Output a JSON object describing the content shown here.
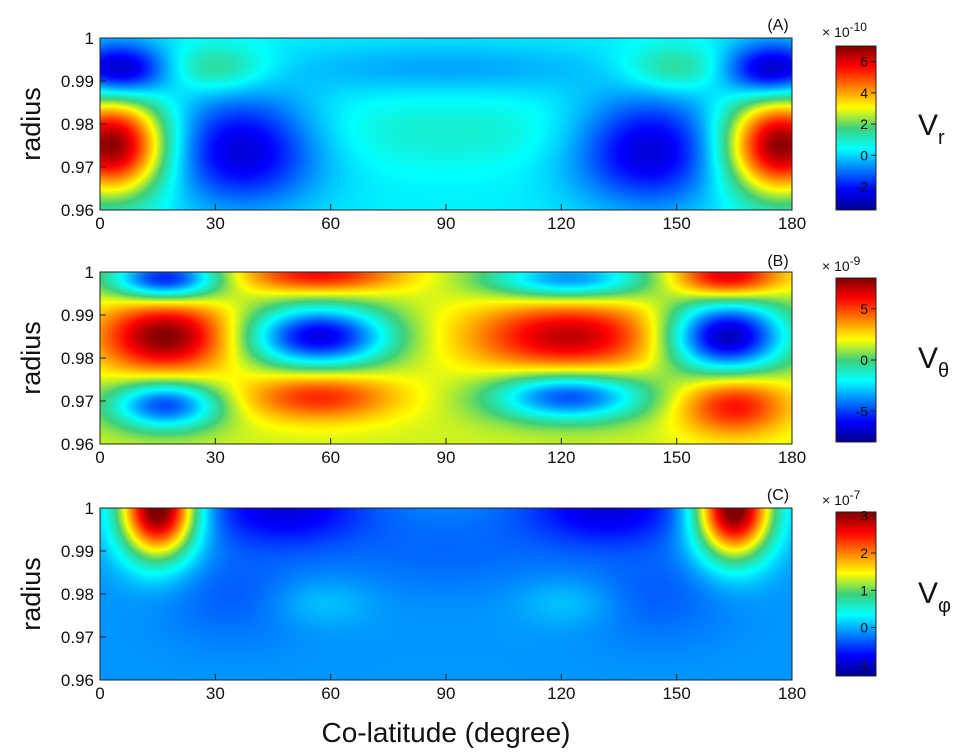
{
  "xlabel": "Co-latitude  (degree)",
  "x_ticks": [
    "0",
    "30",
    "60",
    "90",
    "120",
    "150",
    "180"
  ],
  "y_ticks": [
    "1",
    "0.99",
    "0.98",
    "0.97",
    "0.96"
  ],
  "chart_data": [
    {
      "type": "heatmap",
      "panel": "(A)",
      "ylabel": "radius",
      "xlim": [
        0,
        180
      ],
      "ylim": [
        0.96,
        1.0
      ],
      "colorbar": {
        "label": "V",
        "subscript": "r",
        "multiplier": "× 10",
        "exponent": "-10",
        "ticks": [
          "6",
          "4",
          "2",
          "0",
          "-2"
        ],
        "tick_values": [
          6,
          4,
          2,
          0,
          -2
        ],
        "range": [
          -3.5,
          7
        ]
      },
      "background_value": 0.3,
      "features": [
        {
          "x": 3,
          "y": 0.975,
          "value": 7.0,
          "sx": 10,
          "sy": 0.008
        },
        {
          "x": 177,
          "y": 0.975,
          "value": 7.0,
          "sx": 10,
          "sy": 0.008
        },
        {
          "x": 5,
          "y": 0.9925,
          "value": -3.3,
          "sx": 9,
          "sy": 0.0045
        },
        {
          "x": 175,
          "y": 0.9925,
          "value": -3.3,
          "sx": 9,
          "sy": 0.0045
        },
        {
          "x": 37,
          "y": 0.974,
          "value": -2.8,
          "sx": 14,
          "sy": 0.009
        },
        {
          "x": 143,
          "y": 0.974,
          "value": -2.8,
          "sx": 14,
          "sy": 0.009
        },
        {
          "x": 30,
          "y": 0.993,
          "value": 1.8,
          "sx": 10,
          "sy": 0.004
        },
        {
          "x": 150,
          "y": 0.993,
          "value": 1.8,
          "sx": 10,
          "sy": 0.004
        },
        {
          "x": 90,
          "y": 0.993,
          "value": -0.5,
          "sx": 30,
          "sy": 0.004
        },
        {
          "x": 90,
          "y": 0.978,
          "value": 0.9,
          "sx": 35,
          "sy": 0.006
        }
      ]
    },
    {
      "type": "heatmap",
      "panel": "(B)",
      "ylabel": "radius",
      "xlim": [
        0,
        180
      ],
      "ylim": [
        0.96,
        1.0
      ],
      "colorbar": {
        "label": "V",
        "subscript": "θ",
        "multiplier": "× 10",
        "exponent": "-9",
        "ticks": [
          "5",
          "0",
          "-5"
        ],
        "tick_values": [
          5,
          0,
          -5
        ],
        "range": [
          -8,
          8
        ]
      },
      "background_value": 1.5,
      "features": [
        {
          "x": 17,
          "y": 0.985,
          "value": 8.0,
          "sx": 12,
          "sy": 0.006
        },
        {
          "x": 122,
          "y": 0.985,
          "value": 7.0,
          "sx": 18,
          "sy": 0.006
        },
        {
          "x": 57,
          "y": 0.985,
          "value": -6.5,
          "sx": 13,
          "sy": 0.005
        },
        {
          "x": 163,
          "y": 0.985,
          "value": -7.5,
          "sx": 11,
          "sy": 0.006
        },
        {
          "x": 17,
          "y": 0.9985,
          "value": -6.0,
          "sx": 10,
          "sy": 0.0035
        },
        {
          "x": 122,
          "y": 0.9985,
          "value": -4.0,
          "sx": 15,
          "sy": 0.0035
        },
        {
          "x": 57,
          "y": 0.9995,
          "value": 6.0,
          "sx": 15,
          "sy": 0.003
        },
        {
          "x": 163,
          "y": 0.999,
          "value": 7.0,
          "sx": 10,
          "sy": 0.0035
        },
        {
          "x": 17,
          "y": 0.969,
          "value": -5.0,
          "sx": 10,
          "sy": 0.004
        },
        {
          "x": 122,
          "y": 0.971,
          "value": -5.0,
          "sx": 14,
          "sy": 0.004
        },
        {
          "x": 57,
          "y": 0.971,
          "value": 5.5,
          "sx": 14,
          "sy": 0.004
        },
        {
          "x": 165,
          "y": 0.969,
          "value": 6.0,
          "sx": 10,
          "sy": 0.005
        }
      ]
    },
    {
      "type": "heatmap",
      "panel": "(C)",
      "ylabel": "radius",
      "xlim": [
        0,
        180
      ],
      "ylim": [
        0.96,
        1.0
      ],
      "colorbar": {
        "label": "V",
        "subscript": "φ",
        "multiplier": "× 10",
        "exponent": "-7",
        "ticks": [
          "3",
          "2",
          "1",
          "0",
          "-1"
        ],
        "tick_values": [
          3,
          2,
          1,
          0,
          -1
        ],
        "range": [
          -1.3,
          3.1
        ]
      },
      "background_value": -0.1,
      "features": [
        {
          "x": 15,
          "y": 1.0,
          "value": 3.3,
          "sx": 7,
          "sy": 0.008
        },
        {
          "x": 165,
          "y": 1.0,
          "value": 3.3,
          "sx": 7,
          "sy": 0.008
        },
        {
          "x": 48,
          "y": 1.0,
          "value": -0.9,
          "sx": 15,
          "sy": 0.006
        },
        {
          "x": 132,
          "y": 1.0,
          "value": -0.9,
          "sx": 15,
          "sy": 0.006
        },
        {
          "x": 90,
          "y": 0.99,
          "value": -0.3,
          "sx": 22,
          "sy": 0.007
        },
        {
          "x": 35,
          "y": 0.98,
          "value": -0.35,
          "sx": 14,
          "sy": 0.008
        },
        {
          "x": 145,
          "y": 0.98,
          "value": -0.35,
          "sx": 14,
          "sy": 0.008
        },
        {
          "x": 57,
          "y": 0.978,
          "value": 0.15,
          "sx": 9,
          "sy": 0.004
        },
        {
          "x": 122,
          "y": 0.978,
          "value": 0.15,
          "sx": 9,
          "sy": 0.004
        }
      ]
    }
  ]
}
